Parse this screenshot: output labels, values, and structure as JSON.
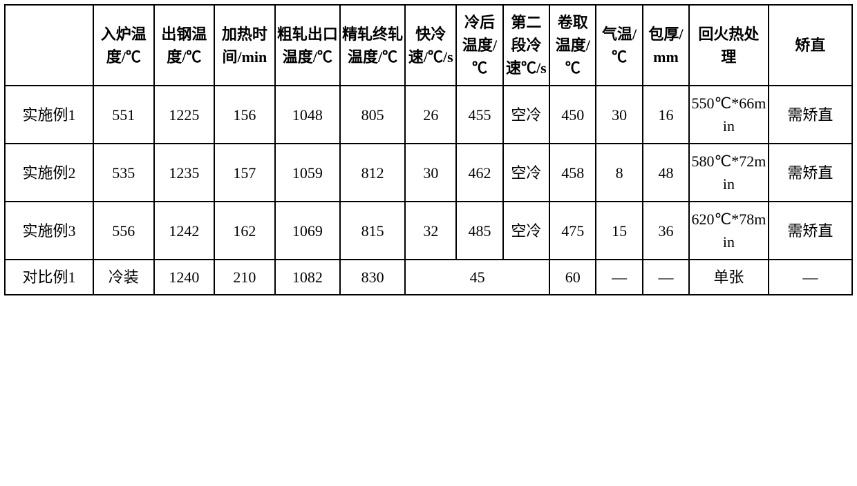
{
  "table": {
    "columns": [
      {
        "key": "label",
        "header": "",
        "width": "9.5%"
      },
      {
        "key": "furnaceTemp",
        "header": "入炉温度/℃",
        "width": "6.5%"
      },
      {
        "key": "tappingTemp",
        "header": "出钢温度/℃",
        "width": "6.5%"
      },
      {
        "key": "heatTime",
        "header": "加热时间/min",
        "width": "6.5%"
      },
      {
        "key": "roughExitTemp",
        "header": "粗轧出口温度/℃",
        "width": "7%"
      },
      {
        "key": "finishRollTemp",
        "header": "精轧终轧温度/℃",
        "width": "7%"
      },
      {
        "key": "fastCoolRate",
        "header": "快冷速/℃/s",
        "width": "5.5%"
      },
      {
        "key": "afterCoolTemp",
        "header": "冷后温度/℃",
        "width": "5%"
      },
      {
        "key": "secondCoolRate",
        "header": "第二段冷速℃/s",
        "width": "5%"
      },
      {
        "key": "coilTemp",
        "header": "卷取温度/℃",
        "width": "5%"
      },
      {
        "key": "airTemp",
        "header": "气温/℃",
        "width": "5%"
      },
      {
        "key": "thickness",
        "header": "包厚/mm",
        "width": "5%"
      },
      {
        "key": "tempering",
        "header": "回火热处理",
        "width": "8.5%"
      },
      {
        "key": "straighten",
        "header": "矫直",
        "width": "9%"
      }
    ],
    "rows": [
      {
        "label": "实施例1",
        "furnaceTemp": "551",
        "tappingTemp": "1225",
        "heatTime": "156",
        "roughExitTemp": "1048",
        "finishRollTemp": "805",
        "fastCoolRate": "26",
        "afterCoolTemp": "455",
        "secondCoolRate": "空冷",
        "coilTemp": "450",
        "airTemp": "30",
        "thickness": "16",
        "tempering": "550℃*66min",
        "straighten": "需矫直"
      },
      {
        "label": "实施例2",
        "furnaceTemp": "535",
        "tappingTemp": "1235",
        "heatTime": "157",
        "roughExitTemp": "1059",
        "finishRollTemp": "812",
        "fastCoolRate": "30",
        "afterCoolTemp": "462",
        "secondCoolRate": "空冷",
        "coilTemp": "458",
        "airTemp": "8",
        "thickness": "48",
        "tempering": "580℃*72min",
        "straighten": "需矫直"
      },
      {
        "label": "实施例3",
        "furnaceTemp": "556",
        "tappingTemp": "1242",
        "heatTime": "162",
        "roughExitTemp": "1069",
        "finishRollTemp": "815",
        "fastCoolRate": "32",
        "afterCoolTemp": "485",
        "secondCoolRate": "空冷",
        "coilTemp": "475",
        "airTemp": "15",
        "thickness": "36",
        "tempering": "620℃*78min",
        "straighten": "需矫直"
      }
    ],
    "compareRow": {
      "label": "对比例1",
      "furnaceTemp": "冷装",
      "tappingTemp": "1240",
      "heatTime": "210",
      "roughExitTemp": "1082",
      "finishRollTemp": "830",
      "merged45": "45",
      "coilTemp": "60",
      "airTemp": "—",
      "thickness": "—",
      "tempering": "单张",
      "straighten": "—"
    }
  }
}
